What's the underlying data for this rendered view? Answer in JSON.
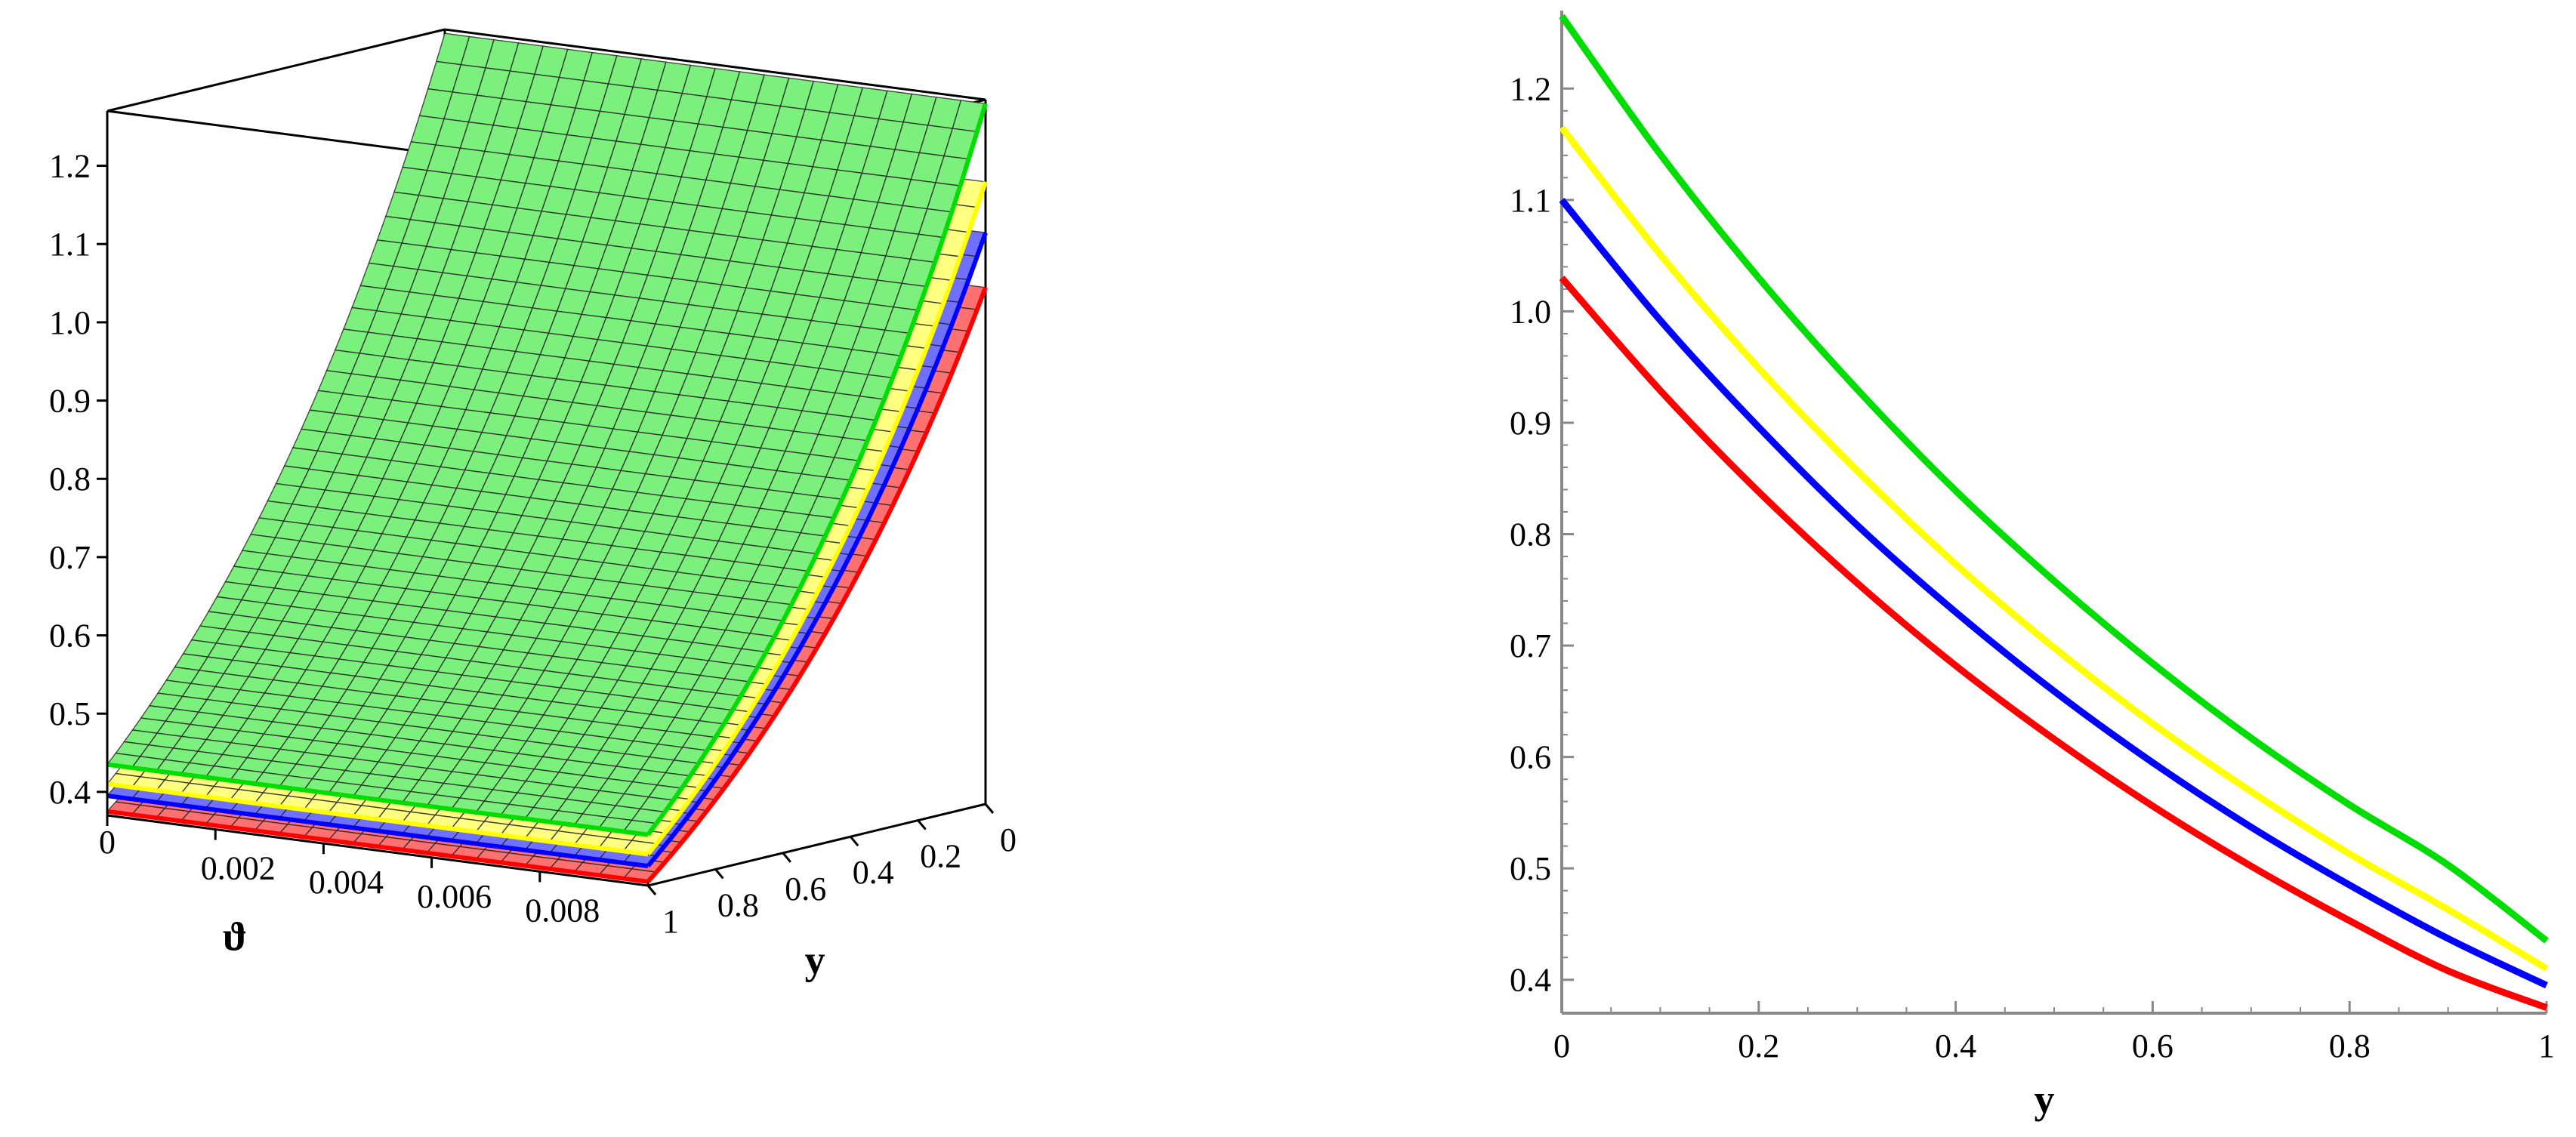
{
  "chart_data": [
    {
      "type": "surface",
      "title": "",
      "xlabel": "ϑ",
      "ylabel": "y",
      "zlabel": "",
      "x_ticks": [
        "0",
        "0.002",
        "0.004",
        "0.006",
        "0.008"
      ],
      "x_range": [
        0,
        0.01
      ],
      "y_ticks": [
        "1",
        "0.8",
        "0.6",
        "0.4",
        "0.2",
        "0"
      ],
      "y_range": [
        0,
        1
      ],
      "z_ticks": [
        "0.4",
        "0.5",
        "0.6",
        "0.7",
        "0.8",
        "0.9",
        "1.0",
        "1.1",
        "1.2"
      ],
      "z_range": [
        0.37,
        1.27
      ],
      "grid": true,
      "surfaces": [
        {
          "color": "#ff0000",
          "corners": {
            "v0_y0": 1.03,
            "v0_y1": 0.375,
            "v1_y0": 1.03,
            "v1_y1": 0.375
          }
        },
        {
          "color": "#0000ff",
          "corners": {
            "v0_y0": 1.1,
            "v0_y1": 0.395,
            "v1_y0": 1.1,
            "v1_y1": 0.395
          }
        },
        {
          "color": "#ffff00",
          "corners": {
            "v0_y0": 1.165,
            "v0_y1": 0.41,
            "v1_y0": 1.165,
            "v1_y1": 0.41
          }
        },
        {
          "color": "#00dd00",
          "corners": {
            "v0_y0": 1.265,
            "v0_y1": 0.435,
            "v1_y0": 1.265,
            "v1_y1": 0.435
          }
        }
      ]
    },
    {
      "type": "line",
      "title": "",
      "xlabel": "y",
      "ylabel": "",
      "xlim": [
        0,
        1
      ],
      "ylim": [
        0.37,
        1.27
      ],
      "x_ticks": [
        0,
        0.2,
        0.4,
        0.6,
        0.8,
        1
      ],
      "x_tick_labels": [
        "0",
        "0.2",
        "0.4",
        "0.6",
        "0.8",
        "1"
      ],
      "y_ticks": [
        0.4,
        0.5,
        0.6,
        0.7,
        0.8,
        0.9,
        1.0,
        1.1,
        1.2
      ],
      "y_tick_labels": [
        "0.4",
        "0.5",
        "0.6",
        "0.7",
        "0.8",
        "0.9",
        "1.0",
        "1.1",
        "1.2"
      ],
      "grid": false,
      "legend": "none",
      "x": [
        0,
        0.1,
        0.2,
        0.3,
        0.4,
        0.5,
        0.6,
        0.7,
        0.8,
        0.9,
        1.0
      ],
      "series": [
        {
          "color": "#00dd00",
          "values": [
            1.265,
            1.141,
            1.03,
            0.93,
            0.839,
            0.758,
            0.684,
            0.617,
            0.557,
            0.503,
            0.435
          ]
        },
        {
          "color": "#ffff00",
          "values": [
            1.165,
            1.051,
            0.949,
            0.857,
            0.773,
            0.698,
            0.63,
            0.569,
            0.513,
            0.463,
            0.41
          ]
        },
        {
          "color": "#0000ff",
          "values": [
            1.1,
            0.992,
            0.896,
            0.808,
            0.73,
            0.659,
            0.595,
            0.537,
            0.485,
            0.437,
            0.395
          ]
        },
        {
          "color": "#ff0000",
          "values": [
            1.03,
            0.929,
            0.838,
            0.756,
            0.682,
            0.616,
            0.556,
            0.502,
            0.453,
            0.408,
            0.375
          ]
        }
      ]
    }
  ]
}
